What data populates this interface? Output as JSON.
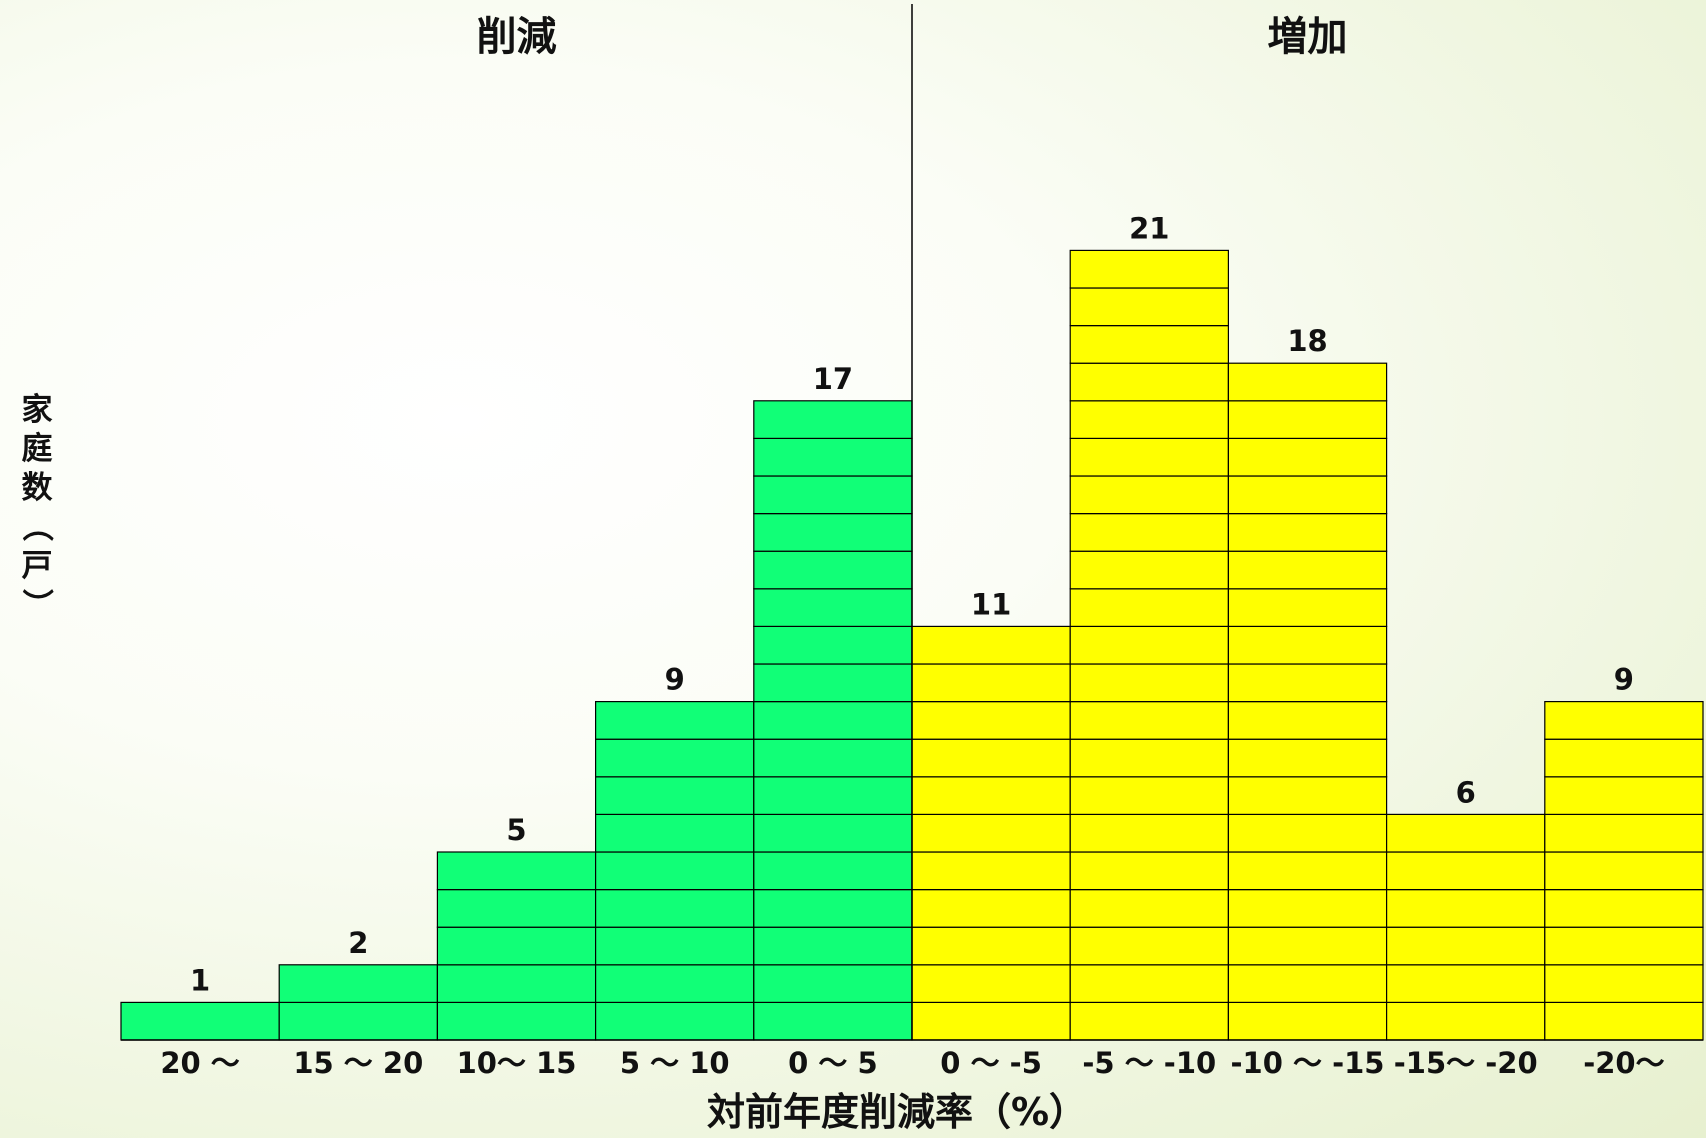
{
  "chart_data": {
    "type": "bar",
    "title": "",
    "xlabel": "対前年度削減率（%）",
    "ylabel": "家庭数（戸）",
    "ylim": [
      0,
      21
    ],
    "grid": false,
    "legend": "none",
    "categories": [
      "20 ～",
      "15 ～ 20",
      "10～ 15",
      "5 ～ 10",
      "0 ～ 5",
      "0 ～ -5",
      "-5 ～ -10",
      "-10 ～ -15",
      "-15～ -20",
      "-20～"
    ],
    "values": [
      1,
      2,
      5,
      9,
      17,
      11,
      21,
      18,
      6,
      9
    ],
    "groups": [
      {
        "label": "削減",
        "from": 0,
        "to": 4,
        "color": "#11ff77"
      },
      {
        "label": "増加",
        "from": 5,
        "to": 9,
        "color": "#ffff00"
      }
    ]
  }
}
